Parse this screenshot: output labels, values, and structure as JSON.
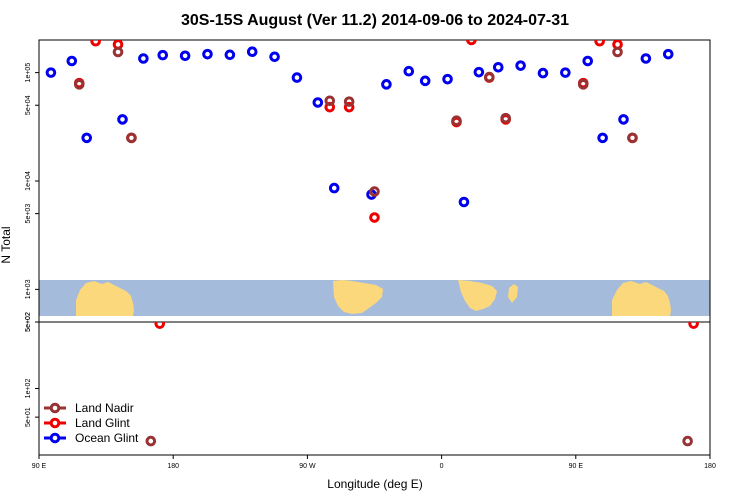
{
  "chart_data": {
    "type": "scatter",
    "title": "30S-15S August (Ver 11.2)   2014-09-06 to 2024-07-31",
    "xlabel": "Longitude (deg E)",
    "ylabel": "N Total",
    "x_ticks": [
      "90 E",
      "180",
      "90 W",
      "0",
      "90 E",
      "180"
    ],
    "x_range": [
      90,
      540
    ],
    "upper_panel": {
      "scale": "log",
      "ylim": [
        500,
        200000
      ],
      "y_ticks": [
        {
          "value": 500,
          "label": "5e+02"
        },
        {
          "value": 1000,
          "label": "1e+03"
        },
        {
          "value": 5000,
          "label": "5e+03"
        },
        {
          "value": 10000,
          "label": "1e+04"
        },
        {
          "value": 50000,
          "label": "5e+04"
        },
        {
          "value": 100000,
          "label": "1e+05"
        }
      ]
    },
    "lower_panel": {
      "scale": "log",
      "ylim": [
        20,
        500
      ],
      "y_ticks": [
        {
          "value": 50,
          "label": "5e+01"
        },
        {
          "value": 100,
          "label": "1e+02"
        },
        {
          "value": 500,
          "label": "5e+02"
        }
      ]
    },
    "legend": {
      "position": "bottom-left",
      "entries": [
        "Land Nadir",
        "Land Glint",
        "Ocean Glint"
      ]
    },
    "series": [
      {
        "name": "Ocean Glint",
        "color": "#0000ee",
        "points": [
          {
            "x": 98,
            "y": 100000
          },
          {
            "x": 112,
            "y": 128000
          },
          {
            "x": 122,
            "y": 25000
          },
          {
            "x": 146,
            "y": 37000
          },
          {
            "x": 160,
            "y": 135000
          },
          {
            "x": 173,
            "y": 145000
          },
          {
            "x": 188,
            "y": 143000
          },
          {
            "x": 203,
            "y": 148000
          },
          {
            "x": 218,
            "y": 146000
          },
          {
            "x": 233,
            "y": 156000
          },
          {
            "x": 248,
            "y": 140000
          },
          {
            "x": 263,
            "y": 90000
          },
          {
            "x": 277,
            "y": 53000
          },
          {
            "x": 288,
            "y": 8600
          },
          {
            "x": 313,
            "y": 7500
          },
          {
            "x": 323,
            "y": 78000
          },
          {
            "x": 338,
            "y": 103000
          },
          {
            "x": 349,
            "y": 84000
          },
          {
            "x": 364,
            "y": 87000
          },
          {
            "x": 375,
            "y": 6400
          },
          {
            "x": 385,
            "y": 101000
          },
          {
            "x": 398,
            "y": 112000
          },
          {
            "x": 413,
            "y": 116000
          },
          {
            "x": 428,
            "y": 99000
          },
          {
            "x": 443,
            "y": 100000
          },
          {
            "x": 458,
            "y": 128000
          },
          {
            "x": 468,
            "y": 25000
          },
          {
            "x": 482,
            "y": 37000
          },
          {
            "x": 497,
            "y": 135000
          },
          {
            "x": 512,
            "y": 148000
          }
        ]
      },
      {
        "name": "Land Glint",
        "color": "#ee0000",
        "points": [
          {
            "x": 117,
            "y": 80000
          },
          {
            "x": 128,
            "y": 195000
          },
          {
            "x": 143,
            "y": 182000
          },
          {
            "x": 152,
            "y": 25000
          },
          {
            "x": 285,
            "y": 48000
          },
          {
            "x": 298,
            "y": 48000
          },
          {
            "x": 315,
            "y": 4600
          },
          {
            "x": 370,
            "y": 35000
          },
          {
            "x": 380,
            "y": 200000
          },
          {
            "x": 392,
            "y": 90000
          },
          {
            "x": 403,
            "y": 37000
          },
          {
            "x": 455,
            "y": 80000
          },
          {
            "x": 466,
            "y": 195000
          },
          {
            "x": 478,
            "y": 182000
          },
          {
            "x": 488,
            "y": 25000
          },
          {
            "x": 171,
            "y": 480
          },
          {
            "x": 529,
            "y": 480
          }
        ]
      },
      {
        "name": "Land Nadir",
        "color": "#993333",
        "points": [
          {
            "x": 117,
            "y": 78000
          },
          {
            "x": 143,
            "y": 155000
          },
          {
            "x": 152,
            "y": 25000
          },
          {
            "x": 285,
            "y": 55000
          },
          {
            "x": 298,
            "y": 54000
          },
          {
            "x": 315,
            "y": 8000
          },
          {
            "x": 370,
            "y": 36000
          },
          {
            "x": 392,
            "y": 91000
          },
          {
            "x": 403,
            "y": 38000
          },
          {
            "x": 455,
            "y": 78000
          },
          {
            "x": 478,
            "y": 155000
          },
          {
            "x": 488,
            "y": 25000
          },
          {
            "x": 165,
            "y": 28
          },
          {
            "x": 525,
            "y": 28
          }
        ]
      }
    ]
  }
}
